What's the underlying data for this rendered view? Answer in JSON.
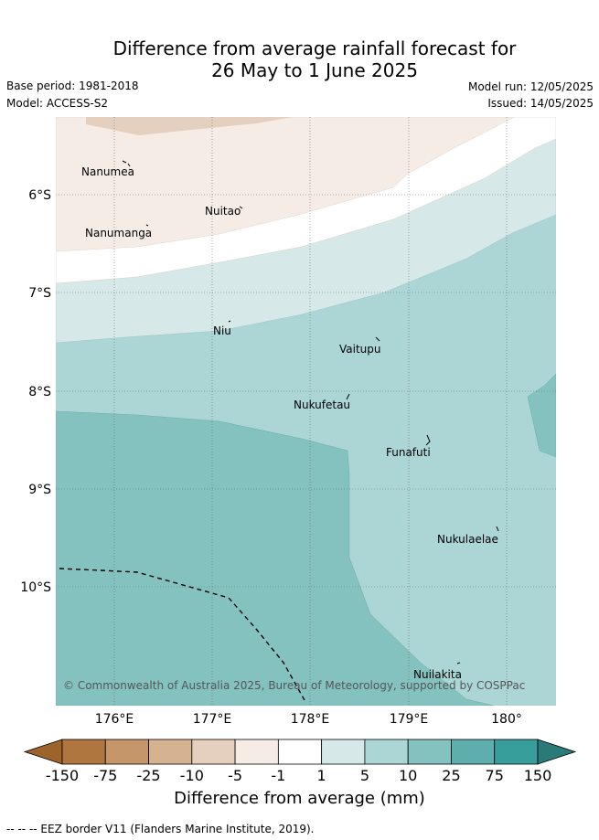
{
  "header": {
    "title_line1": "Difference from average rainfall forecast for",
    "title_line2": "26 May to 1 June 2025",
    "base_period": "Base period: 1981-2018",
    "model": "Model: ACCESS-S2",
    "model_run": "Model run: 12/05/2025",
    "issued": "Issued: 14/05/2025"
  },
  "map": {
    "lat_labels": [
      "6°S",
      "7°S",
      "8°S",
      "9°S",
      "10°S"
    ],
    "lon_labels": [
      "176°E",
      "177°E",
      "178°E",
      "179°E",
      "180°"
    ],
    "places": [
      "Nanumea",
      "Nuitao",
      "Nanumanga",
      "Niu",
      "Vaitupu",
      "Nukufetau",
      "Funafuti",
      "Nukulaelae",
      "Nuilakita"
    ],
    "copyright": "© Commonwealth of Australia 2025, Bureau of Meteorology, supported by COSPPac"
  },
  "colorbar": {
    "ticks": [
      "-150",
      "-75",
      "-25",
      "-10",
      "-5",
      "-1",
      "1",
      "5",
      "10",
      "25",
      "75",
      "150"
    ],
    "colors": [
      "#9c642b",
      "#b07640",
      "#c4966a",
      "#d5b391",
      "#e5d0bf",
      "#f5ece6",
      "#ffffff",
      "#d6e9e8",
      "#acd6d5",
      "#84c2c0",
      "#5daeac",
      "#379e9c",
      "#2a7a7a"
    ],
    "label": "Difference from average (mm)"
  },
  "footer": {
    "eez_label": "-- -- -- EEZ border V11 (Flanders Marine Institute, 2019)."
  }
}
